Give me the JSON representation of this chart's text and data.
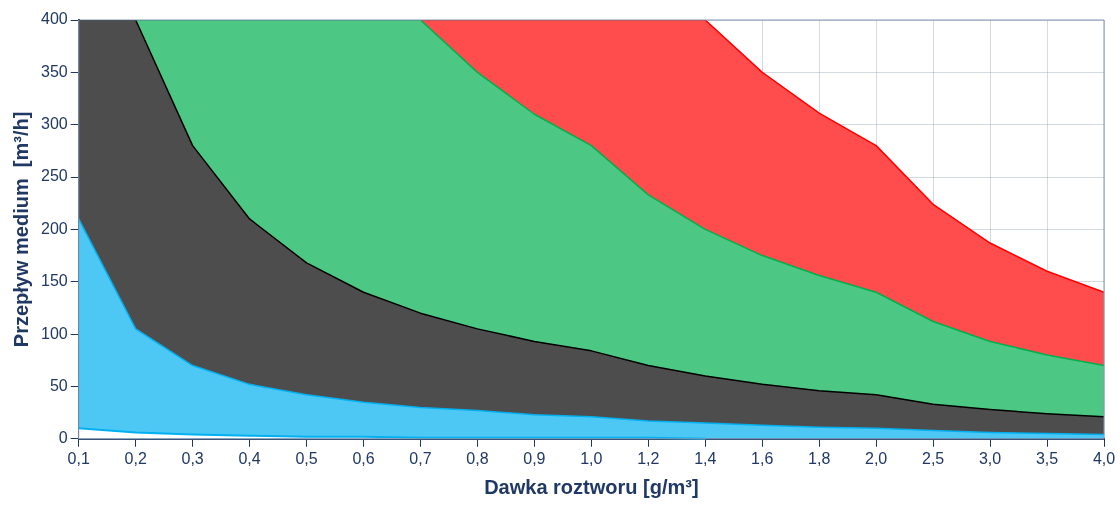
{
  "chart_data": {
    "type": "area",
    "xlabel": "Dawka roztworu [g/m³]",
    "ylabel": "Przepływ medium  [m³/h]",
    "categories": [
      "0,1",
      "0,2",
      "0,3",
      "0,4",
      "0,5",
      "0,6",
      "0,7",
      "0,8",
      "0,9",
      "1,0",
      "1,2",
      "1,4",
      "1,6",
      "1,8",
      "2,0",
      "2,5",
      "3,0",
      "3,5",
      "4,0"
    ],
    "series": [
      {
        "type": "line",
        "color": "#00b0f0",
        "values": [
          10,
          6,
          4,
          3,
          2,
          2,
          1,
          1,
          1,
          1,
          1,
          0,
          null,
          null,
          null,
          null,
          null,
          null,
          null
        ]
      },
      {
        "color": "#4dc8f5",
        "values": [
          210,
          105,
          70,
          52,
          42,
          35,
          30,
          27,
          23,
          21,
          17,
          15,
          13,
          11,
          10,
          8,
          6,
          5,
          4
        ]
      },
      {
        "color": "#4d4d4d",
        "values": [
          400,
          400,
          280,
          210,
          168,
          140,
          120,
          105,
          93,
          84,
          70,
          60,
          52,
          46,
          42,
          33,
          28,
          24,
          21
        ]
      },
      {
        "color": "#4dc884",
        "values": [
          400,
          400,
          400,
          400,
          400,
          400,
          400,
          350,
          310,
          280,
          233,
          200,
          175,
          156,
          140,
          112,
          93,
          80,
          70
        ]
      },
      {
        "color": "#ff4d4d",
        "values": [
          400,
          400,
          400,
          400,
          400,
          400,
          400,
          400,
          400,
          400,
          400,
          400,
          350,
          311,
          280,
          224,
          187,
          160,
          140
        ]
      }
    ],
    "ylim": [
      0,
      400
    ],
    "yticks": [
      0,
      50,
      100,
      150,
      200,
      250,
      300,
      350,
      400
    ],
    "grid": true,
    "legend": false
  }
}
